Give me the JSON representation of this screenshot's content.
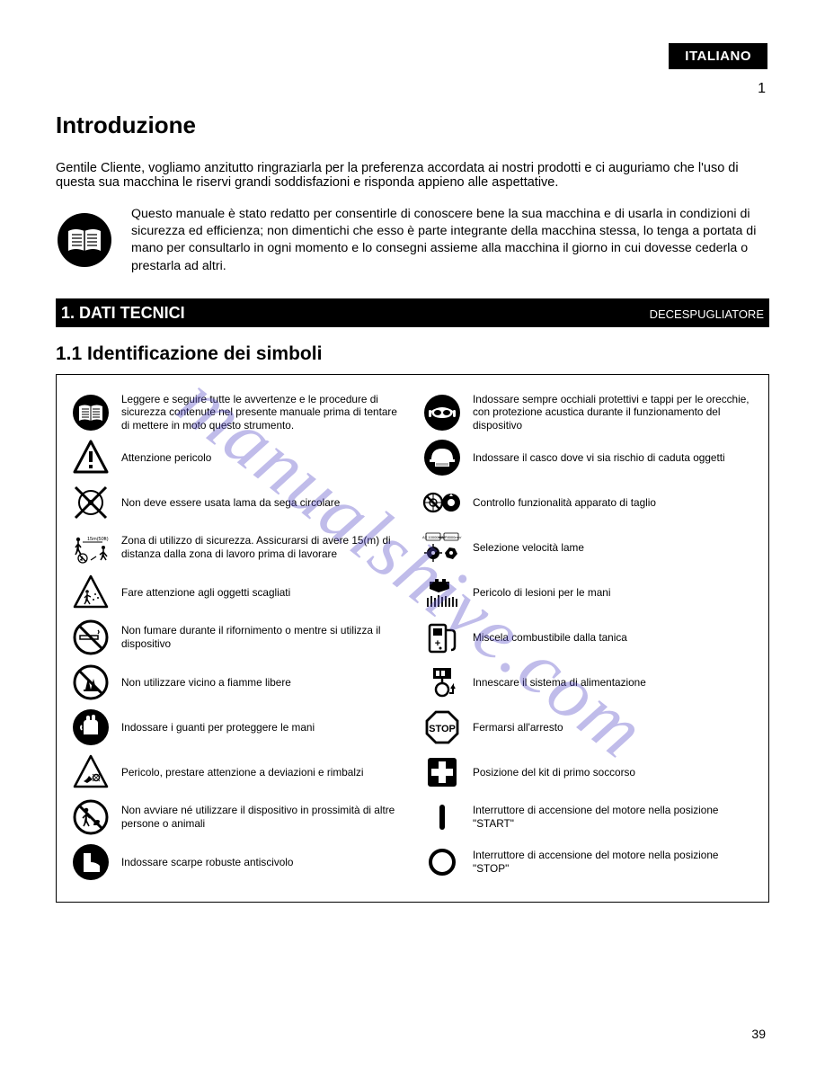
{
  "language_tag": "ITALIANO",
  "page_top": "1",
  "watermark": "manualshive.com",
  "intro_heading": "Introduzione",
  "gentile": "Gentile Cliente, vogliamo anzitutto ringraziarla per la preferenza accordata ai nostri prodotti e ci auguriamo che l'uso di questa sua macchina le riservi grandi soddisfazioni e risponda appieno alle aspettative.",
  "manual_text": "Questo manuale è stato redatto per consentirle di conoscere bene la sua macchina e di usarla in condizioni di sicurezza ed efficienza; non dimentichi che esso è parte integrante della macchina stessa, lo tenga a portata di mano per consultarlo in ogni momento e lo consegni assieme alla macchina il giorno in cui dovesse cederla o prestarla ad altri.",
  "section_bar_left": "1. DATI TECNICI",
  "section_bar_right": "DECESPUGLIATORE",
  "ident_heading": "1.1 Identificazione dei simboli",
  "left_symbols": [
    {
      "name": "book-icon",
      "label": "Leggere e seguire tutte le avvertenze e le procedure di sicurezza contenute nel presente manuale prima di tentare di mettere in moto questo strumento."
    },
    {
      "name": "warning-triangle-icon",
      "label": "Attenzione pericolo"
    },
    {
      "name": "saw-blade-cross-icon",
      "label": "Non deve essere usata lama da sega circolare"
    },
    {
      "name": "distance-15m-icon",
      "label": "Zona di utilizzo di sicurezza. Assicurarsi di avere 15(m) di distanza dalla zona di lavoro prima di lavorare"
    },
    {
      "name": "thrown-objects-triangle-icon",
      "label": "Fare attenzione agli oggetti scagliati"
    },
    {
      "name": "no-smoking-icon",
      "label": "Non fumare durante il rifornimento o mentre si utilizza il dispositivo"
    },
    {
      "name": "no-open-flame-icon",
      "label": "Non utilizzare vicino a fiamme libere"
    },
    {
      "name": "gloves-icon",
      "label": "Indossare i guanti per proteggere le mani"
    },
    {
      "name": "foot-contact-triangle-icon",
      "label": "Pericolo, prestare attenzione a deviazioni e rimbalzi"
    },
    {
      "name": "keep-bystanders-away-icon",
      "label": "Non avviare né utilizzare il dispositivo in prossimità di altre persone o animali"
    },
    {
      "name": "boots-icon",
      "label": "Indossare scarpe robuste antiscivolo"
    }
  ],
  "right_symbols": [
    {
      "name": "goggles-ear-protection-icon",
      "label": "Indossare sempre occhiali protettivi e tappi per le orecchie, con protezione acustica durante il funzionamento del dispositivo"
    },
    {
      "name": "helmet-icon",
      "label": "Indossare il casco dove vi sia rischio di caduta oggetti"
    },
    {
      "name": "no-damaged-discs-icon",
      "label": "Controllo funzionalità apparato di taglio"
    },
    {
      "name": "blade-rpm-icon",
      "label": "Selezione velocità lame"
    },
    {
      "name": "hand-injury-grass-icon",
      "label": "Pericolo di lesioni per le mani"
    },
    {
      "name": "fuel-pump-icon",
      "label": "Miscela combustibile dalla tanica"
    },
    {
      "name": "primer-bulb-icon",
      "label": "Innescare il sistema di alimentazione"
    },
    {
      "name": "stop-sign-icon",
      "label": "Fermarsi all'arresto"
    },
    {
      "name": "first-aid-icon",
      "label": "Posizione del kit di primo soccorso"
    },
    {
      "name": "on-switch-icon",
      "label": "Interruttore di accensione del motore nella posizione \"START\""
    },
    {
      "name": "off-switch-icon",
      "label": "Interruttore di accensione del motore nella posizione \"STOP\""
    }
  ],
  "bottom_page": "39"
}
